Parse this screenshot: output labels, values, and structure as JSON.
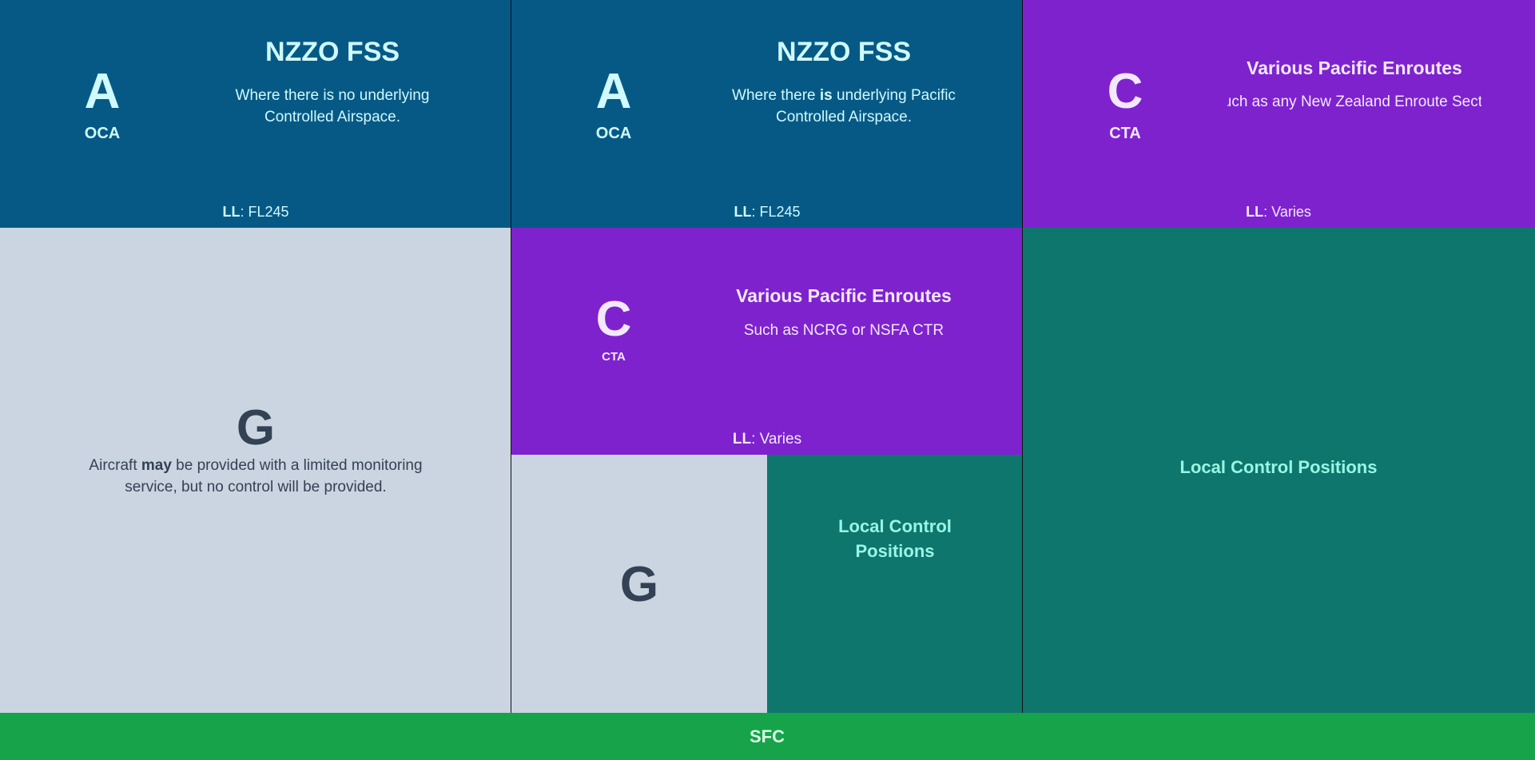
{
  "column_1": {
    "top": {
      "class_letter": "A",
      "class_sub": "OCA",
      "title": "NZZO FSS",
      "desc_line1": "Where there is no underlying",
      "desc_line2": "Controlled Airspace.",
      "ll_label": "LL",
      "ll_value": ": FL245"
    },
    "bottom": {
      "class_letter": "G",
      "desc_pre": "Aircraft ",
      "desc_bold": "may",
      "desc_post": " be provided with a limited monitoring",
      "desc_line2": "service, but no control will be provided."
    }
  },
  "column_2": {
    "top": {
      "class_letter": "A",
      "class_sub": "OCA",
      "title": "NZZO FSS",
      "desc_pre": "Where there ",
      "desc_bold": "is",
      "desc_post": " underlying Pacific",
      "desc_line2": "Controlled Airspace.",
      "ll_label": "LL",
      "ll_value": ": FL245"
    },
    "middle": {
      "class_letter": "C",
      "class_sub": "CTA",
      "title": "Various Pacific Enroutes",
      "desc": "Such as NCRG or NSFA CTR",
      "ll_label": "LL",
      "ll_value": ": Varies"
    },
    "bottom_left": {
      "class_letter": "G"
    },
    "bottom_right": {
      "label_line1": "Local Control",
      "label_line2": "Positions"
    }
  },
  "column_3": {
    "top": {
      "class_letter": "C",
      "class_sub": "CTA",
      "title": "Various Pacific Enroutes",
      "desc": "Such as any New Zealand Enroute Sector",
      "ll_label": "LL",
      "ll_value": ": Varies"
    },
    "bottom": {
      "label": "Local Control Positions"
    }
  },
  "footer": {
    "label": "SFC"
  },
  "colors": {
    "class_a": "#075985",
    "class_c": "#7e22ce",
    "class_g": "#cbd5e1",
    "local_control": "#0f766e",
    "surface": "#16a34a"
  }
}
